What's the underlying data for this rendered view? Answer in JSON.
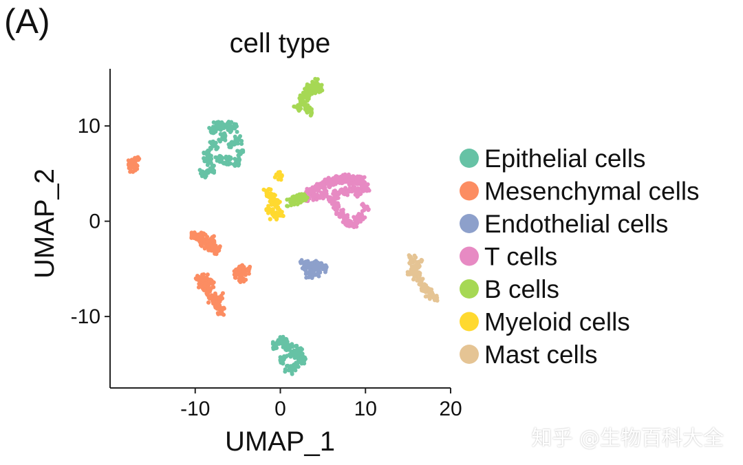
{
  "panel_label": "(A)",
  "watermark": "知乎 @生物百科大全",
  "chart_data": {
    "type": "scatter",
    "title": "cell type",
    "xlabel": "UMAP_1",
    "ylabel": "UMAP_2",
    "xlim": [
      -20,
      20
    ],
    "ylim": [
      -17.5,
      16
    ],
    "xticks": [
      -10,
      0,
      10,
      20
    ],
    "yticks": [
      -10,
      0,
      10
    ],
    "grid": false,
    "legend_position": "right",
    "series": [
      {
        "name": "Epithelial cells",
        "color": "#66C2A5",
        "clusters": [
          {
            "x": [
              -9,
              -8.5,
              -8,
              -7.5,
              -7,
              -6.5,
              -6,
              -5.5,
              -5,
              -4.8,
              -5.2,
              -6.2,
              -7.2,
              -8.2,
              -8.6,
              -7.8,
              -6.8,
              -5.8
            ],
            "y": [
              5,
              6.5,
              9.5,
              10,
              10,
              10,
              10,
              9.8,
              8.5,
              7,
              6.2,
              6.4,
              6.6,
              5.5,
              7,
              8,
              8.8,
              8
            ]
          },
          {
            "x": [
              -0.5,
              0,
              0.5,
              1,
              1.5,
              2,
              2.5,
              1.8,
              1,
              0.4,
              2.2
            ],
            "y": [
              -13,
              -12.5,
              -12.8,
              -13.3,
              -13.8,
              -14.2,
              -14.5,
              -15.2,
              -15.6,
              -14.5,
              -13.5
            ]
          }
        ]
      },
      {
        "name": "Mesenchymal cells",
        "color": "#FC8D62",
        "clusters": [
          {
            "x": [
              -17.5,
              -17,
              -17.2
            ],
            "y": [
              6,
              6.4,
              5.6
            ]
          },
          {
            "x": [
              -10,
              -9.5,
              -9,
              -8.5,
              -8,
              -7.5,
              -9.2,
              -8.2
            ],
            "y": [
              -1.5,
              -1.8,
              -2.2,
              -2.5,
              -2.8,
              -3,
              -1.6,
              -2
            ]
          },
          {
            "x": [
              -9.5,
              -9,
              -8.5,
              -8,
              -7.5,
              -7,
              -7.2,
              -8.2,
              -8.8,
              -9.2
            ],
            "y": [
              -6,
              -6.8,
              -7.5,
              -8.2,
              -8.8,
              -9.5,
              -8,
              -6.5,
              -6,
              -6.5
            ]
          },
          {
            "x": [
              -5,
              -4.5,
              -4,
              -4.5
            ],
            "y": [
              -5.5,
              -5,
              -5.2,
              -6
            ]
          }
        ]
      },
      {
        "name": "Endothelial cells",
        "color": "#8DA0CB",
        "clusters": [
          {
            "x": [
              2.8,
              3.2,
              3.6,
              4,
              4.5,
              5,
              3.4,
              4.2
            ],
            "y": [
              -4.5,
              -4.8,
              -5.2,
              -4.6,
              -4.8,
              -5,
              -5.5,
              -5.6
            ]
          }
        ]
      },
      {
        "name": "T cells",
        "color": "#E78AC3",
        "clusters": [
          {
            "x": [
              3,
              3.5,
              4,
              4.5,
              5,
              5.5,
              6,
              6.5,
              7,
              7.5,
              8,
              8.5,
              9,
              9.5,
              10,
              10,
              9.5,
              9,
              8.5,
              8,
              7.5,
              7,
              6.5,
              6,
              6.5,
              7.5,
              8.5,
              9.2,
              5.2,
              4.2
            ],
            "y": [
              2.5,
              3,
              3.3,
              3.6,
              3.8,
              4,
              4.2,
              4.3,
              4.4,
              4.5,
              4.5,
              4.4,
              4.3,
              4.2,
              3.5,
              1.5,
              0.5,
              0,
              -0.3,
              -0.2,
              0.2,
              0.8,
              1.5,
              2.2,
              2.8,
              3.2,
              3.5,
              3,
              2.8,
              2.6
            ]
          }
        ]
      },
      {
        "name": "B cells",
        "color": "#A6D854",
        "clusters": [
          {
            "x": [
              2,
              2.5,
              3,
              3.5,
              4,
              4.5,
              3.3,
              2.8,
              3.8,
              3.5
            ],
            "y": [
              12,
              12.8,
              13.5,
              14.2,
              14.5,
              14,
              13.2,
              12.2,
              13.8,
              11.5
            ]
          },
          {
            "x": [
              1.2,
              1.8,
              2.4,
              2.8
            ],
            "y": [
              2,
              2.2,
              2.4,
              2.6
            ]
          }
        ]
      },
      {
        "name": "Myeloid cells",
        "color": "#FFD92F",
        "clusters": [
          {
            "x": [
              -1.5,
              -1,
              -0.5,
              0,
              -0.8,
              -0.2,
              -1.2,
              -0.6
            ],
            "y": [
              3,
              2.5,
              1.8,
              1,
              0.6,
              4.8,
              1.2,
              2
            ]
          }
        ]
      },
      {
        "name": "Mast cells",
        "color": "#E5C494",
        "clusters": [
          {
            "x": [
              15.5,
              15.8,
              16,
              16.5,
              17,
              17.5,
              18,
              16.2,
              15.4
            ],
            "y": [
              -4,
              -5,
              -5.8,
              -6.5,
              -7,
              -7.5,
              -8,
              -4.5,
              -5.5
            ]
          }
        ]
      }
    ]
  }
}
